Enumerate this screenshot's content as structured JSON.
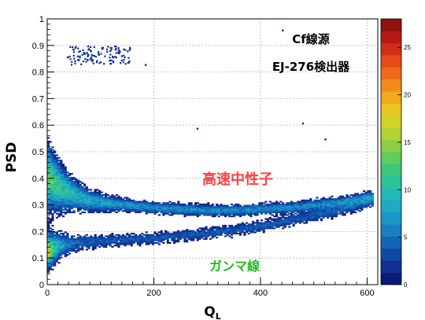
{
  "chart_data": {
    "type": "heatmap",
    "xlabel": "Q",
    "xlabel_sub": "L",
    "ylabel": "PSD",
    "xlim": [
      0,
      620
    ],
    "ylim": [
      0,
      1
    ],
    "x_ticks": [
      0,
      200,
      400,
      600
    ],
    "y_ticks": [
      0,
      0.1,
      0.2,
      0.3,
      0.4,
      0.5,
      0.6,
      0.7,
      0.8,
      0.9,
      1
    ],
    "grid": true,
    "colorbar": {
      "min": 0,
      "max": 28,
      "tick_labels": [
        "0",
        "5",
        "10",
        "15",
        "20",
        "25"
      ],
      "tick_values": [
        0,
        5,
        10,
        15,
        20,
        25
      ],
      "colors": [
        "#0b1a78",
        "#10308f",
        "#1048a6",
        "#1565b5",
        "#1a7fc0",
        "#1a96c8",
        "#1fa9c4",
        "#24b8b4",
        "#2bc19b",
        "#3ec67f",
        "#62cb5f",
        "#8acf45",
        "#b0d234",
        "#d1d22b",
        "#e9c424",
        "#f2a81f",
        "#f38a1c",
        "#ef6a1a",
        "#e54a18",
        "#d22e16",
        "#b51a14",
        "#8f1010"
      ]
    },
    "series": [
      {
        "name": "高速中性子",
        "band": "upper",
        "x": [
          5,
          15,
          30,
          50,
          75,
          100,
          150,
          200,
          250,
          300,
          350,
          400,
          450,
          500,
          550,
          600
        ],
        "y": [
          0.4,
          0.38,
          0.36,
          0.34,
          0.32,
          0.31,
          0.3,
          0.29,
          0.285,
          0.28,
          0.28,
          0.285,
          0.29,
          0.3,
          0.31,
          0.33
        ]
      },
      {
        "name": "ガンマ線",
        "band": "lower",
        "x": [
          5,
          15,
          30,
          50,
          75,
          100,
          150,
          200,
          250,
          300,
          350,
          400,
          450,
          500,
          550,
          600
        ],
        "y": [
          0.13,
          0.14,
          0.15,
          0.155,
          0.16,
          0.165,
          0.17,
          0.175,
          0.185,
          0.195,
          0.205,
          0.22,
          0.24,
          0.26,
          0.28,
          0.31
        ]
      }
    ],
    "annotations": [
      {
        "text": "Cf線源",
        "color": "#000000"
      },
      {
        "text": "EJ-276検出器",
        "color": "#000000"
      },
      {
        "text": "高速中性子",
        "color": "#ff4040"
      },
      {
        "text": "ガンマ線",
        "color": "#22bb22"
      }
    ]
  }
}
